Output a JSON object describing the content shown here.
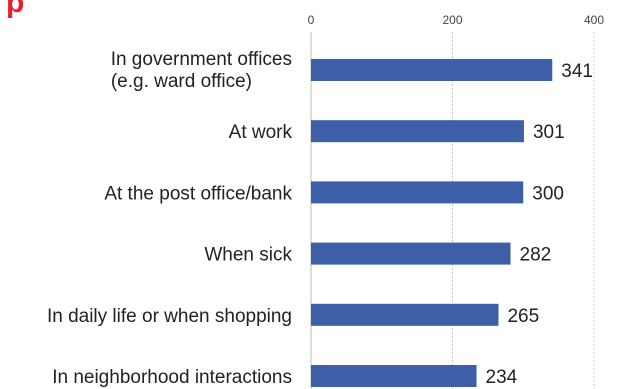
{
  "title_fragment": "p",
  "chart_data": {
    "type": "bar",
    "orientation": "horizontal",
    "categories": [
      [
        "In government offices",
        "(e.g. ward office)"
      ],
      [
        "At work"
      ],
      [
        "At the post office/bank"
      ],
      [
        "When sick"
      ],
      [
        "In daily life or when shopping"
      ],
      [
        "In neighborhood interactions"
      ]
    ],
    "values": [
      341,
      301,
      300,
      282,
      265,
      234
    ],
    "xlim": [
      0,
      400
    ],
    "xticks": [
      0,
      200,
      400
    ],
    "tick_position": "top",
    "grid": true,
    "bar_color": "#3c5fa8"
  }
}
